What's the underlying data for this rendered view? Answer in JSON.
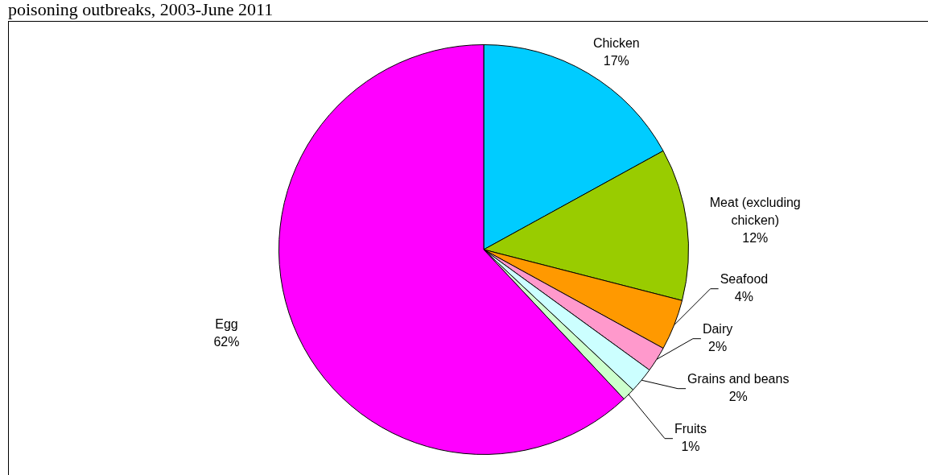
{
  "chart_data": {
    "type": "pie",
    "title": "poisoning outbreaks, 2003-June 2011",
    "categories": [
      "Chicken",
      "Meat (excluding chicken)",
      "Seafood",
      "Dairy",
      "Grains and beans",
      "Fruits",
      "Egg"
    ],
    "values": [
      17,
      12,
      4,
      2,
      2,
      1,
      62
    ],
    "value_labels": [
      "17%",
      "12%",
      "4%",
      "2%",
      "2%",
      "1%",
      "62%"
    ],
    "colors": [
      "#00ccff",
      "#99cc00",
      "#ff9900",
      "#ff99cc",
      "#ccffff",
      "#ccffcc",
      "#ff00ff"
    ]
  }
}
